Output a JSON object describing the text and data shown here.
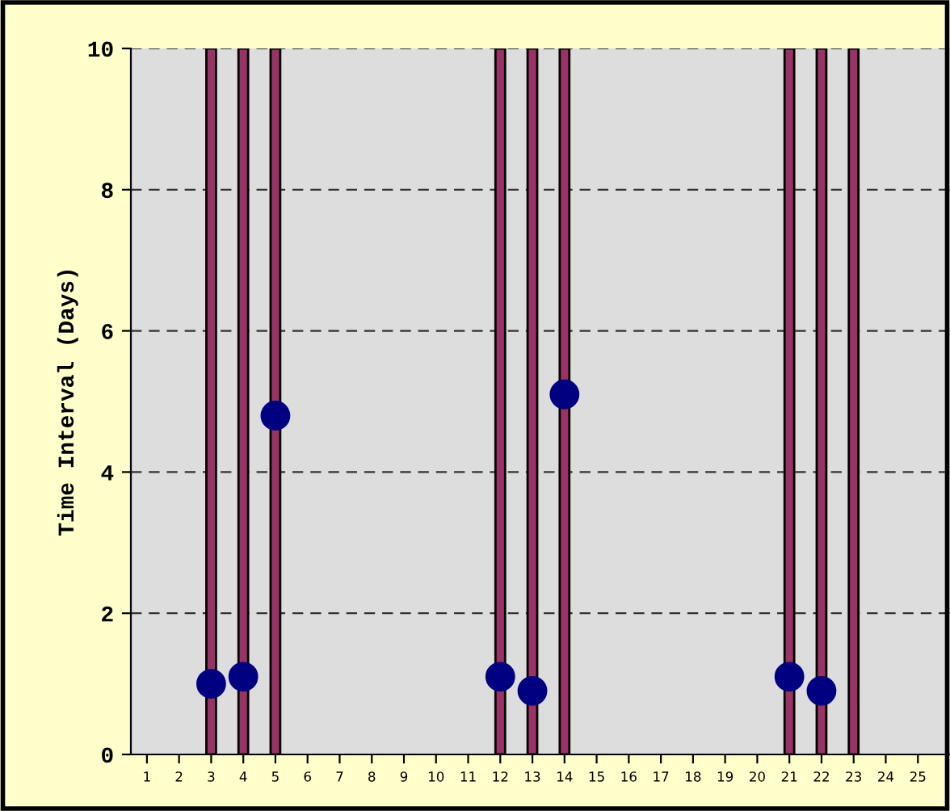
{
  "chart_data": {
    "type": "bar",
    "ylabel": "Time Interval (Days)",
    "categories": [
      "1",
      "2",
      "3",
      "4",
      "5",
      "6",
      "7",
      "8",
      "9",
      "10",
      "11",
      "12",
      "13",
      "14",
      "15",
      "16",
      "17",
      "18",
      "19",
      "20",
      "21",
      "22",
      "23",
      "24",
      "25"
    ],
    "series": [
      {
        "color": "#993366",
        "values": [
          null,
          null,
          10,
          10,
          10,
          null,
          null,
          null,
          null,
          null,
          null,
          10,
          10,
          10,
          null,
          null,
          null,
          null,
          null,
          null,
          10,
          10,
          10,
          null,
          null
        ]
      },
      {
        "type": "scatter",
        "color": "#000080",
        "marker": "circle",
        "x": [
          "3",
          "4",
          "5",
          "12",
          "13",
          "14",
          "21",
          "22"
        ],
        "values": [
          1.0,
          1.1,
          4.8,
          1.1,
          0.9,
          5.1,
          1.1,
          0.9
        ]
      }
    ],
    "ylim": [
      0,
      10
    ],
    "yticks": [
      0,
      2,
      4,
      6,
      8,
      10
    ],
    "grid": "y",
    "line_style": "dashed",
    "legend": false
  }
}
